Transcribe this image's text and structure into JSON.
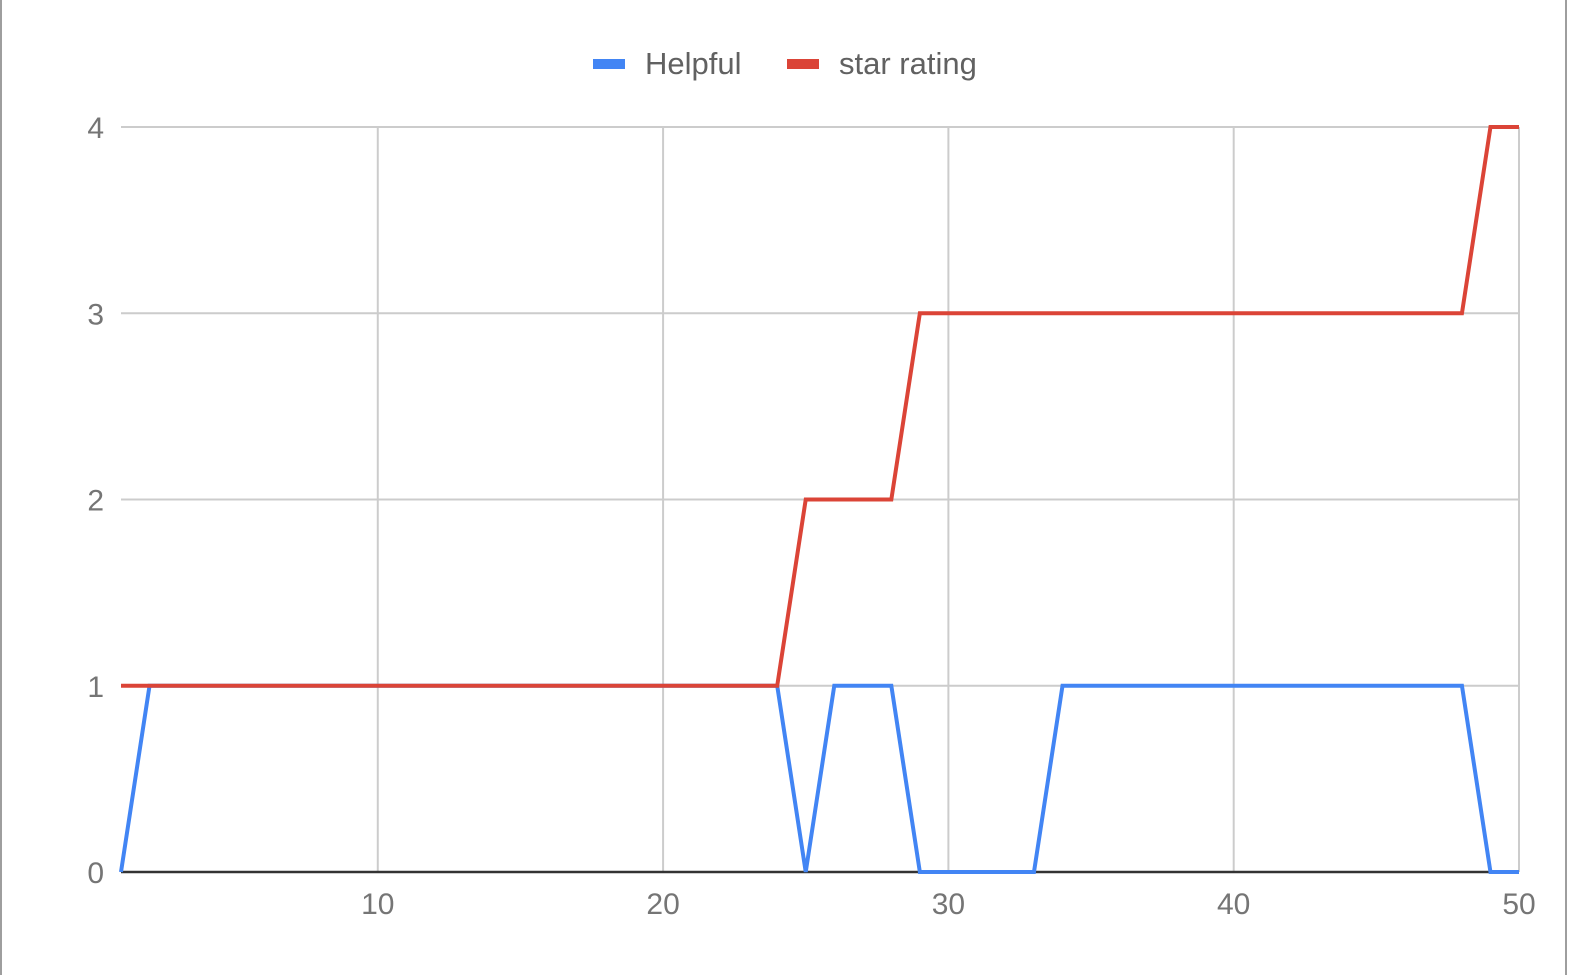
{
  "chart_data": {
    "type": "line",
    "title": "",
    "xlabel": "",
    "ylabel": "",
    "xlim": [
      1,
      50
    ],
    "ylim": [
      0,
      4
    ],
    "x_ticks": [
      "10",
      "20",
      "30",
      "40",
      "50"
    ],
    "y_ticks": [
      "0",
      "1",
      "2",
      "3",
      "4"
    ],
    "grid": true,
    "legend_position": "top",
    "x": [
      1,
      2,
      3,
      4,
      5,
      6,
      7,
      8,
      9,
      10,
      11,
      12,
      13,
      14,
      15,
      16,
      17,
      18,
      19,
      20,
      21,
      22,
      23,
      24,
      25,
      26,
      27,
      28,
      29,
      30,
      31,
      32,
      33,
      34,
      35,
      36,
      37,
      38,
      39,
      40,
      41,
      42,
      43,
      44,
      45,
      46,
      47,
      48,
      49,
      50
    ],
    "series": [
      {
        "name": "Helpful",
        "color": "#4285f4",
        "values": [
          0,
          1,
          1,
          1,
          1,
          1,
          1,
          1,
          1,
          1,
          1,
          1,
          1,
          1,
          1,
          1,
          1,
          1,
          1,
          1,
          1,
          1,
          1,
          1,
          0,
          1,
          1,
          1,
          0,
          0,
          0,
          0,
          0,
          1,
          1,
          1,
          1,
          1,
          1,
          1,
          1,
          1,
          1,
          1,
          1,
          1,
          1,
          1,
          0,
          0
        ]
      },
      {
        "name": "star rating",
        "color": "#db4437",
        "values": [
          1,
          1,
          1,
          1,
          1,
          1,
          1,
          1,
          1,
          1,
          1,
          1,
          1,
          1,
          1,
          1,
          1,
          1,
          1,
          1,
          1,
          1,
          1,
          1,
          2,
          2,
          2,
          2,
          3,
          3,
          3,
          3,
          3,
          3,
          3,
          3,
          3,
          3,
          3,
          3,
          3,
          3,
          3,
          3,
          3,
          3,
          3,
          3,
          4,
          4
        ]
      }
    ]
  }
}
